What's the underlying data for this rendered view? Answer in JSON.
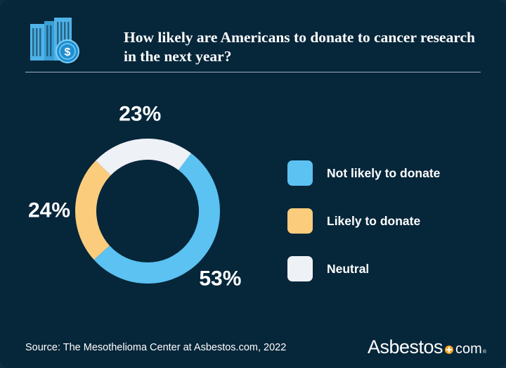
{
  "header": {
    "title": "How likely are Americans to donate to cancer research in the next year?",
    "icon": "building-dollar-icon"
  },
  "colors": {
    "background": "#06263a",
    "not_likely": "#5bc2f2",
    "likely": "#fccc7d",
    "neutral": "#eef1f5"
  },
  "chart_data": {
    "type": "pie",
    "donut": true,
    "start_angle_deg": 37,
    "direction": "clockwise",
    "legend_position": "right",
    "series": [
      {
        "name": "Not likely to donate",
        "value": 53,
        "label": "53%",
        "color": "#5bc2f2"
      },
      {
        "name": "Likely to donate",
        "value": 24,
        "label": "24%",
        "color": "#fccc7d"
      },
      {
        "name": "Neutral",
        "value": 23,
        "label": "23%",
        "color": "#eef1f5"
      }
    ]
  },
  "footer": {
    "source": "Source: The Mesothelioma Center at Asbestos.com, 2022",
    "logo_main": "Asbestos",
    "logo_tld": "com",
    "logo_reg": "®"
  }
}
